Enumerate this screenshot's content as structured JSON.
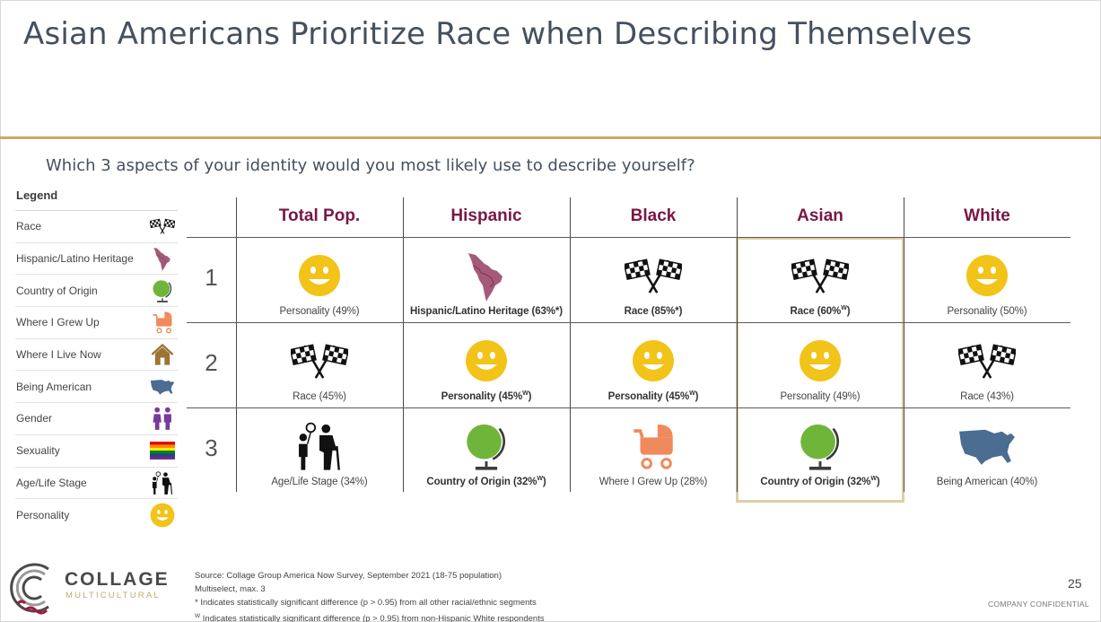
{
  "title": "Asian Americans Prioritize Race when Describing Themselves",
  "question": "Which 3 aspects of your identity would you most likely use to describe yourself?",
  "legend": {
    "title": "Legend",
    "items": [
      {
        "label": "Race",
        "icon": "flags-icon"
      },
      {
        "label": "Hispanic/Latino Heritage",
        "icon": "latin-america-map-icon"
      },
      {
        "label": "Country of Origin",
        "icon": "globe-icon"
      },
      {
        "label": "Where I Grew Up",
        "icon": "stroller-icon"
      },
      {
        "label": "Where I Live Now",
        "icon": "house-icon"
      },
      {
        "label": "Being American",
        "icon": "usa-map-icon"
      },
      {
        "label": "Gender",
        "icon": "gender-icon"
      },
      {
        "label": "Sexuality",
        "icon": "rainbow-flag-icon"
      },
      {
        "label": "Age/Life Stage",
        "icon": "family-icon"
      },
      {
        "label": "Personality",
        "icon": "smiley-icon"
      }
    ]
  },
  "colors": {
    "accent": "#c8a96a",
    "heading": "#7a1743",
    "title": "#45505e",
    "highlight": "#dccfa3"
  },
  "chart_data": {
    "type": "table",
    "title": "Asian Americans Prioritize Race when Describing Themselves",
    "columns": [
      "Total Pop.",
      "Hispanic",
      "Black",
      "Asian",
      "White"
    ],
    "rows": [
      "1",
      "2",
      "3"
    ],
    "highlighted_column": "Asian",
    "cells": [
      [
        {
          "label": "Personality (49%)",
          "icon": "smiley-icon",
          "bold": false,
          "sup": ""
        },
        {
          "label": "Hispanic/Latino Heritage (63%*)",
          "icon": "latin-america-map-icon",
          "bold": true,
          "sup": ""
        },
        {
          "label": "Race (85%*)",
          "icon": "flags-icon",
          "bold": true,
          "sup": ""
        },
        {
          "label": "Race (60%",
          "suffix": ")",
          "icon": "flags-icon",
          "bold": true,
          "sup": "W"
        },
        {
          "label": "Personality (50%)",
          "icon": "smiley-icon",
          "bold": false,
          "sup": ""
        }
      ],
      [
        {
          "label": "Race (45%)",
          "icon": "flags-icon",
          "bold": false,
          "sup": ""
        },
        {
          "label": "Personality (45%",
          "suffix": ")",
          "icon": "smiley-icon",
          "bold": true,
          "sup": "W"
        },
        {
          "label": "Personality (45%",
          "suffix": ")",
          "icon": "smiley-icon",
          "bold": true,
          "sup": "W"
        },
        {
          "label": "Personality (49%)",
          "icon": "smiley-icon",
          "bold": false,
          "sup": ""
        },
        {
          "label": "Race (43%)",
          "icon": "flags-icon",
          "bold": false,
          "sup": ""
        }
      ],
      [
        {
          "label": "Age/Life Stage (34%)",
          "icon": "family-icon",
          "bold": false,
          "sup": ""
        },
        {
          "label": "Country of Origin (32%",
          "suffix": ")",
          "icon": "globe-icon",
          "bold": true,
          "sup": "W"
        },
        {
          "label": "Where I Grew Up (28%)",
          "icon": "stroller-icon",
          "bold": false,
          "sup": ""
        },
        {
          "label": "Country of Origin (32%",
          "suffix": ")",
          "icon": "globe-icon",
          "bold": true,
          "sup": "W"
        },
        {
          "label": "Being American (40%)",
          "icon": "usa-map-icon",
          "bold": false,
          "sup": ""
        }
      ]
    ]
  },
  "logo": {
    "name": "COLLAGE",
    "sub": "MULTICULTURAL"
  },
  "notes": [
    "Source: Collage Group America Now Survey, September 2021 (18-75 population)",
    "Multiselect, max. 3",
    "* Indicates statistically significant difference (p > 0.95) from all other racial/ethnic segments",
    "Indicates statistically significant difference (p > 0.95) from non-Hispanic White respondents"
  ],
  "notes_w_marker": "W",
  "page_number": "25",
  "confidential": "COMPANY CONFIDENTIAL"
}
